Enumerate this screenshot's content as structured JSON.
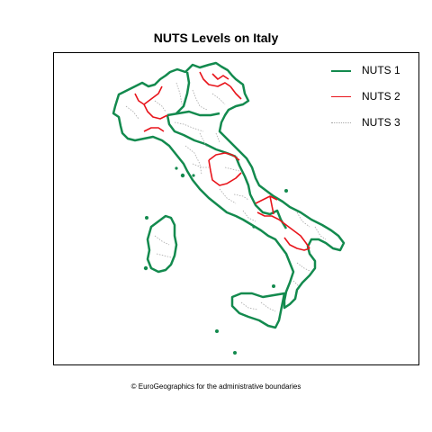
{
  "map": {
    "title": "NUTS Levels on Italy",
    "caption": "© EuroGeographics for the administrative boundaries",
    "colors": {
      "nuts1": "#138a4e",
      "nuts2": "#e8141b",
      "nuts3": "#a8a8a8"
    },
    "legend": [
      {
        "label": "NUTS 1",
        "style": "solid-thick",
        "color": "#138a4e"
      },
      {
        "label": "NUTS 2",
        "style": "solid",
        "color": "#e8141b"
      },
      {
        "label": "NUTS 3",
        "style": "dotted",
        "color": "#a8a8a8"
      }
    ]
  }
}
